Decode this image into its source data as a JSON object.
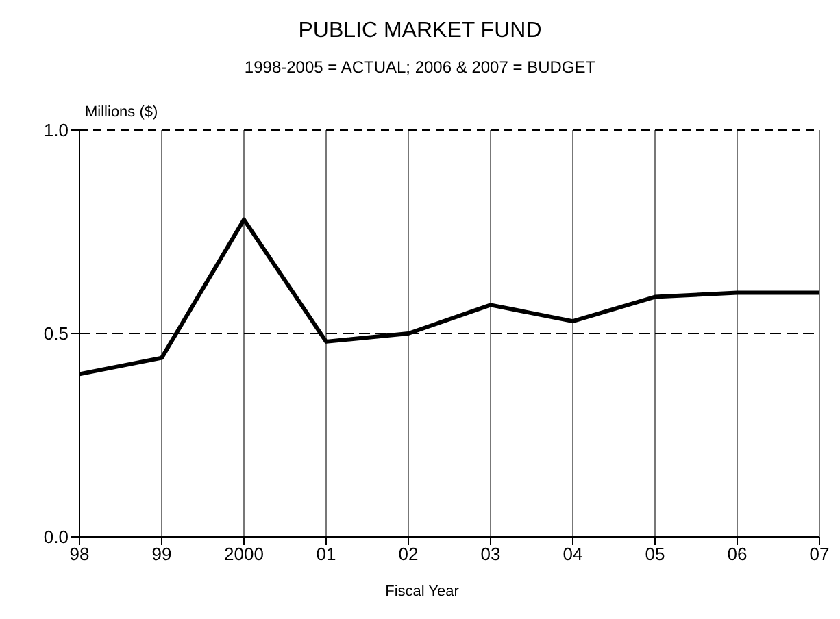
{
  "chart_data": {
    "type": "line",
    "title": "PUBLIC MARKET FUND",
    "subtitle": "1998-2005 = ACTUAL; 2006 & 2007 = BUDGET",
    "xlabel": "Fiscal Year",
    "ylabel": "Millions ($)",
    "categories": [
      "98",
      "99",
      "2000",
      "01",
      "02",
      "03",
      "04",
      "05",
      "06",
      "07"
    ],
    "series": [
      {
        "color": "#000000",
        "values": [
          0.4,
          0.44,
          0.78,
          0.48,
          0.5,
          0.57,
          0.53,
          0.59,
          0.6,
          0.6
        ]
      }
    ],
    "ylim": [
      0,
      1
    ],
    "yticks": [
      {
        "value": 0,
        "label": "0.0"
      },
      {
        "value": 0.5,
        "label": "0.5"
      },
      {
        "value": 1,
        "label": "1.0"
      }
    ],
    "grid": "x",
    "ref_lines": [
      {
        "axis": "y",
        "value": 0.5,
        "line_style": "dashed",
        "color": "#000000"
      }
    ],
    "legend": false,
    "marker": "none",
    "line_style": "solid"
  }
}
